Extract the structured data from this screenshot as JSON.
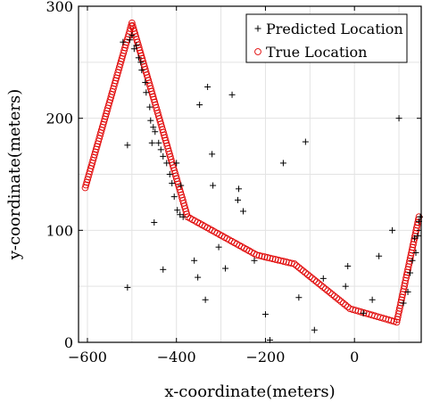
{
  "chart_data": {
    "type": "scatter",
    "title": "",
    "xlabel": "x-coordinate(meters)",
    "ylabel": "y-coordinate(meters)",
    "xlim": [
      -620,
      150
    ],
    "ylim": [
      0,
      300
    ],
    "xticks": [
      -600,
      -400,
      -200,
      0
    ],
    "yticks": [
      0,
      100,
      200,
      300
    ],
    "grid": true,
    "legend_position": "top-right",
    "series": [
      {
        "name": "True Location",
        "marker": "circle",
        "color": "#e00000",
        "path": [
          [
            -605,
            138
          ],
          [
            -500,
            285
          ],
          [
            -375,
            112
          ],
          [
            -220,
            78
          ],
          [
            -135,
            70
          ],
          [
            -10,
            30
          ],
          [
            95,
            18
          ],
          [
            145,
            112
          ]
        ]
      },
      {
        "name": "Predicted Location",
        "marker": "plus",
        "color": "#000000",
        "points": [
          [
            -520,
            268
          ],
          [
            -505,
            270
          ],
          [
            -500,
            274
          ],
          [
            -495,
            262
          ],
          [
            -490,
            265
          ],
          [
            -485,
            254
          ],
          [
            -480,
            250
          ],
          [
            -478,
            243
          ],
          [
            -470,
            232
          ],
          [
            -468,
            223
          ],
          [
            -460,
            210
          ],
          [
            -458,
            198
          ],
          [
            -452,
            192
          ],
          [
            -448,
            188
          ],
          [
            -440,
            178
          ],
          [
            -435,
            172
          ],
          [
            -430,
            166
          ],
          [
            -422,
            160
          ],
          [
            -415,
            150
          ],
          [
            -410,
            142
          ],
          [
            -405,
            130
          ],
          [
            -398,
            118
          ],
          [
            -392,
            114
          ],
          [
            -385,
            112
          ],
          [
            -510,
            176
          ],
          [
            -455,
            178
          ],
          [
            -400,
            160
          ],
          [
            -390,
            140
          ],
          [
            -450,
            107
          ],
          [
            -360,
            73
          ],
          [
            -352,
            58
          ],
          [
            -430,
            65
          ],
          [
            -510,
            49
          ],
          [
            -335,
            38
          ],
          [
            -320,
            168
          ],
          [
            -318,
            140
          ],
          [
            -305,
            85
          ],
          [
            -290,
            66
          ],
          [
            -348,
            212
          ],
          [
            -330,
            228
          ],
          [
            -275,
            221
          ],
          [
            -260,
            137
          ],
          [
            -262,
            127
          ],
          [
            -250,
            117
          ],
          [
            -225,
            73
          ],
          [
            -200,
            25
          ],
          [
            -190,
            2
          ],
          [
            -160,
            160
          ],
          [
            -125,
            40
          ],
          [
            -110,
            179
          ],
          [
            -70,
            57
          ],
          [
            -90,
            11
          ],
          [
            -15,
            68
          ],
          [
            -20,
            50
          ],
          [
            40,
            38
          ],
          [
            20,
            26
          ],
          [
            55,
            77
          ],
          [
            85,
            100
          ],
          [
            100,
            200
          ],
          [
            110,
            35
          ],
          [
            120,
            45
          ],
          [
            125,
            62
          ],
          [
            130,
            73
          ],
          [
            135,
            93
          ],
          [
            138,
            80
          ],
          [
            142,
            95
          ],
          [
            145,
            108
          ],
          [
            148,
            112
          ]
        ]
      }
    ]
  }
}
